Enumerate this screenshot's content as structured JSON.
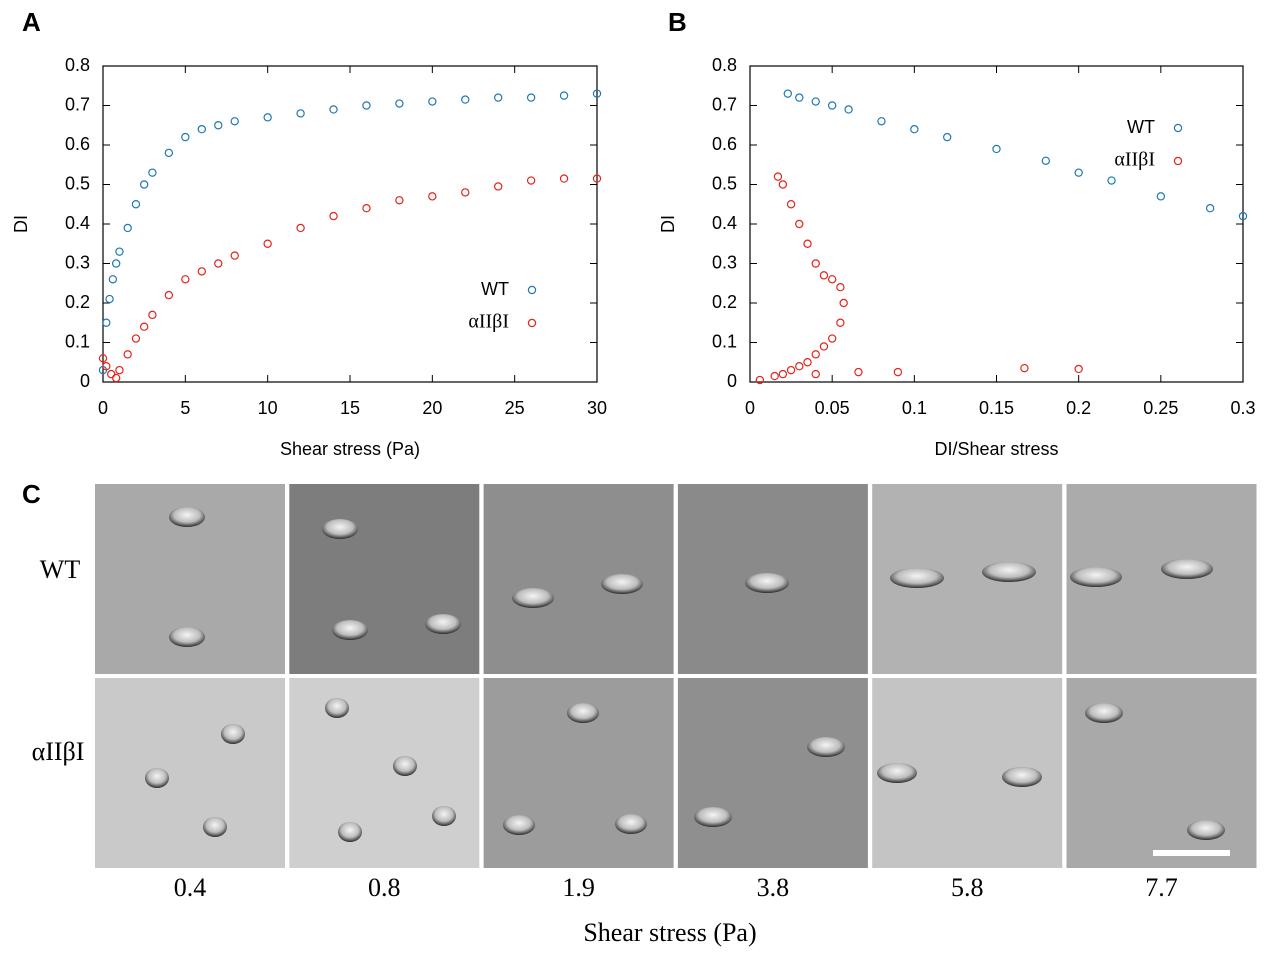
{
  "panels": {
    "a": "A",
    "b": "B",
    "c": "C"
  },
  "chart_data": [
    {
      "type": "scatter",
      "xlabel": "Shear stress (Pa)",
      "ylabel": "DI",
      "xlim": [
        0,
        30
      ],
      "ylim": [
        0,
        0.8
      ],
      "xticks": [
        0,
        5,
        10,
        15,
        20,
        25,
        30
      ],
      "yticks": [
        0,
        0.1,
        0.2,
        0.3,
        0.4,
        0.5,
        0.6,
        0.7,
        0.8
      ],
      "legend": "lower right",
      "series": [
        {
          "name": "WT",
          "color": "#1f78b4",
          "x": [
            0,
            0.2,
            0.4,
            0.6,
            0.8,
            1,
            1.5,
            2,
            2.5,
            3,
            4,
            5,
            6,
            7,
            8,
            10,
            12,
            14,
            16,
            18,
            20,
            22,
            24,
            26,
            28,
            30
          ],
          "values": [
            0.03,
            0.15,
            0.21,
            0.26,
            0.3,
            0.33,
            0.39,
            0.45,
            0.5,
            0.53,
            0.58,
            0.62,
            0.64,
            0.65,
            0.66,
            0.67,
            0.68,
            0.69,
            0.7,
            0.705,
            0.71,
            0.715,
            0.72,
            0.72,
            0.725,
            0.73
          ]
        },
        {
          "name": "αIIβI",
          "color": "#e3241b",
          "x": [
            0,
            0.2,
            0.5,
            0.8,
            1,
            1.5,
            2,
            2.5,
            3,
            4,
            5,
            6,
            7,
            8,
            10,
            12,
            14,
            16,
            18,
            20,
            22,
            24,
            26,
            28,
            30
          ],
          "values": [
            0.06,
            0.04,
            0.02,
            0.01,
            0.03,
            0.07,
            0.11,
            0.14,
            0.17,
            0.22,
            0.26,
            0.28,
            0.3,
            0.32,
            0.35,
            0.39,
            0.42,
            0.44,
            0.46,
            0.47,
            0.48,
            0.495,
            0.51,
            0.515,
            0.515
          ]
        }
      ]
    },
    {
      "type": "scatter",
      "xlabel": "DI/Shear stress",
      "ylabel": "DI",
      "xlim": [
        0,
        0.3
      ],
      "ylim": [
        0,
        0.8
      ],
      "xticks": [
        0,
        0.05,
        0.1,
        0.15,
        0.2,
        0.25,
        0.3
      ],
      "yticks": [
        0,
        0.1,
        0.2,
        0.3,
        0.4,
        0.5,
        0.6,
        0.7,
        0.8
      ],
      "legend": "upper right",
      "series": [
        {
          "name": "WT",
          "color": "#1f78b4",
          "x": [
            0.023,
            0.03,
            0.04,
            0.05,
            0.06,
            0.08,
            0.1,
            0.12,
            0.15,
            0.18,
            0.2,
            0.22,
            0.25,
            0.28,
            0.3
          ],
          "values": [
            0.73,
            0.72,
            0.71,
            0.7,
            0.69,
            0.66,
            0.64,
            0.62,
            0.59,
            0.56,
            0.53,
            0.51,
            0.47,
            0.44,
            0.42
          ]
        },
        {
          "name": "αIIβI",
          "color": "#e3241b",
          "x": [
            0.017,
            0.02,
            0.025,
            0.03,
            0.035,
            0.04,
            0.045,
            0.05,
            0.055,
            0.057,
            0.055,
            0.05,
            0.045,
            0.04,
            0.035,
            0.03,
            0.025,
            0.02,
            0.015,
            0.006,
            0.04,
            0.066,
            0.09,
            0.167,
            0.2
          ],
          "values": [
            0.52,
            0.5,
            0.45,
            0.4,
            0.35,
            0.3,
            0.27,
            0.26,
            0.24,
            0.2,
            0.15,
            0.11,
            0.09,
            0.07,
            0.05,
            0.04,
            0.03,
            0.02,
            0.015,
            0.005,
            0.02,
            0.025,
            0.025,
            0.035,
            0.033
          ]
        }
      ]
    }
  ],
  "micrographs": {
    "rows": [
      "WT",
      "αIIβI"
    ],
    "columns": [
      "0.4",
      "0.8",
      "1.9",
      "3.8",
      "5.8",
      "7.7"
    ],
    "xlabel": "Shear stress (Pa)"
  }
}
